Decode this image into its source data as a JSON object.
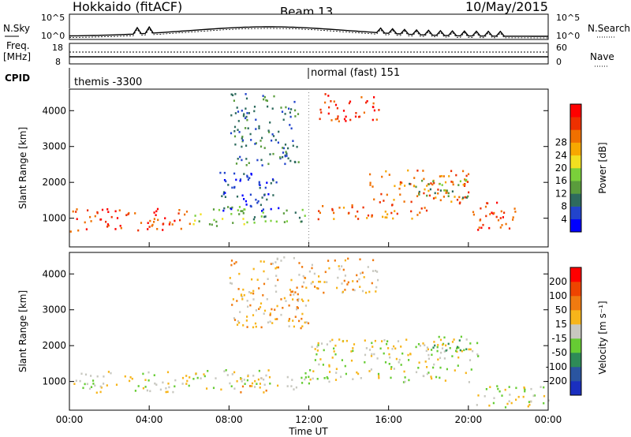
{
  "header": {
    "title": "Hokkaido (fitACF)",
    "beam": "Beam 13",
    "date": "10/May/2015"
  },
  "top_panel": {
    "left_label": "N.Sky",
    "left_ticks": [
      "10^5",
      "10^0"
    ],
    "right_ticks": [
      "10^5",
      "10^0"
    ],
    "right_label": "N.Search"
  },
  "freq_panel": {
    "left_label_1": "Freq.",
    "left_label_2": "[MHz]",
    "left_ticks": [
      "18",
      "8"
    ],
    "right_ticks": [
      "60",
      "0"
    ],
    "right_label": "Nave"
  },
  "cpid_panel": {
    "label": "CPID",
    "modes": [
      "themis -3300",
      "normal (fast) 151"
    ]
  },
  "chart_data": [
    {
      "type": "heatmap",
      "ylabel": "Slant Range [km]",
      "yticks": [
        "1000",
        "2000",
        "3000",
        "4000"
      ],
      "ylim": [
        200,
        4600
      ],
      "colorbar": {
        "label": "Power [dB]",
        "ticks": [
          "4",
          "8",
          "12",
          "16",
          "20",
          "24",
          "28"
        ],
        "colors": [
          "#0000ff",
          "#2244cc",
          "#2e6b5e",
          "#5a9c3c",
          "#7ad03a",
          "#f2e020",
          "#f7a800",
          "#f07000",
          "#ee3000",
          "#ff0000"
        ]
      },
      "bands": [
        {
          "t0": 0.0,
          "t1": 6.0,
          "r0": 650,
          "r1": 1300,
          "level": 8
        },
        {
          "t0": 6.0,
          "t1": 9.0,
          "r0": 800,
          "r1": 1350,
          "level": 4
        },
        {
          "t0": 7.5,
          "t1": 10.5,
          "r0": 1100,
          "r1": 2300,
          "level": 1
        },
        {
          "t0": 9.0,
          "t1": 12.0,
          "r0": 900,
          "r1": 1300,
          "level": 3
        },
        {
          "t0": 12.5,
          "t1": 15.5,
          "r0": 3700,
          "r1": 4500,
          "level": 8
        },
        {
          "t0": 12.0,
          "t1": 18.0,
          "r0": 1000,
          "r1": 1400,
          "level": 7
        },
        {
          "t0": 15.0,
          "t1": 20.0,
          "r0": 1400,
          "r1": 2400,
          "level": 7
        },
        {
          "t0": 17.0,
          "t1": 20.0,
          "r0": 1600,
          "r1": 2100,
          "level": 3
        },
        {
          "t0": 20.0,
          "t1": 22.5,
          "r0": 700,
          "r1": 1500,
          "level": 8
        },
        {
          "t0": 8.0,
          "t1": 11.5,
          "r0": 2500,
          "r1": 4500,
          "level": 2
        }
      ]
    },
    {
      "type": "heatmap",
      "ylabel": "Slant Range [km]",
      "yticks": [
        "1000",
        "2000",
        "3000",
        "4000"
      ],
      "ylim": [
        200,
        4600
      ],
      "colorbar": {
        "label": "Velocity [m s⁻¹]",
        "ticks": [
          "200",
          "100",
          "50",
          "15",
          "-15",
          "-50",
          "-100",
          "-200"
        ],
        "colors": [
          "#1a2fbf",
          "#2a55a0",
          "#2e8b57",
          "#66cc33",
          "#c8c8c0",
          "#f7b51a",
          "#f07a10",
          "#ee4400",
          "#ff0000"
        ]
      },
      "bands": [
        {
          "t0": 0.0,
          "t1": 6.0,
          "r0": 700,
          "r1": 1300,
          "level": 4
        },
        {
          "t0": 6.0,
          "t1": 12.0,
          "r0": 800,
          "r1": 1350,
          "level": 4
        },
        {
          "t0": 8.5,
          "t1": 10.0,
          "r0": 700,
          "r1": 1200,
          "level": 5
        },
        {
          "t0": 12.0,
          "t1": 20.5,
          "r0": 1000,
          "r1": 2200,
          "level": 4
        },
        {
          "t0": 18.0,
          "t1": 20.0,
          "r0": 1800,
          "r1": 2300,
          "level": 3
        },
        {
          "t0": 8.0,
          "t1": 12.0,
          "r0": 2500,
          "r1": 4500,
          "level": 5
        },
        {
          "t0": 12.0,
          "t1": 15.5,
          "r0": 3500,
          "r1": 4500,
          "level": 5
        },
        {
          "t0": 20.0,
          "t1": 24.0,
          "r0": 300,
          "r1": 900,
          "level": 4
        }
      ]
    }
  ],
  "time_axis": {
    "xlabel": "Time UT",
    "ticks": [
      "00:00",
      "04:00",
      "08:00",
      "12:00",
      "16:00",
      "20:00",
      "00:00"
    ]
  }
}
